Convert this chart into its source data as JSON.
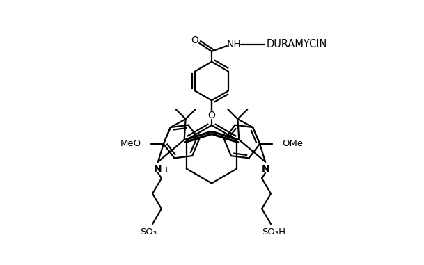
{
  "bg_color": "#ffffff",
  "line_color": "#000000",
  "line_width": 1.6,
  "figsize": [
    6.09,
    3.81
  ],
  "dpi": 100,
  "labels": {
    "MeO_left": "MeO",
    "OMe_right": "OMe",
    "N_plus": "N",
    "plus": "+",
    "N_right": "N",
    "O_center": "O",
    "SO3_minus": "SO₃⁻",
    "SO3H": "SO₃H",
    "NH": "NH",
    "DURAMYCIN": "DURAMYCIN",
    "O_carbonyl": "O"
  }
}
